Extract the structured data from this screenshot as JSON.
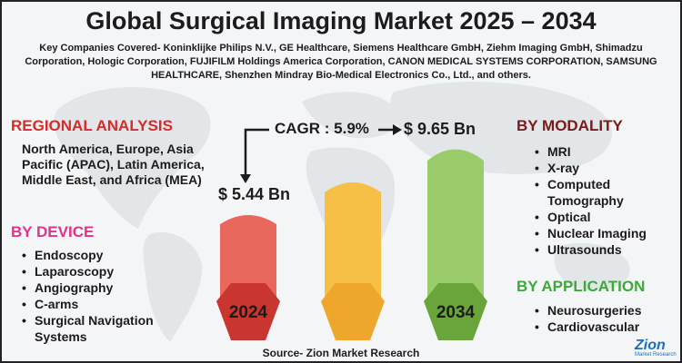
{
  "title": "Global Surgical Imaging Market 2025 – 2034",
  "companies": "Key Companies Covered- Koninklijke Philips N.V., GE Healthcare, Siemens Healthcare GmbH, Ziehm Imaging GmbH, Shimadzu Corporation, Hologic Corporation, FUJIFILM Holdings America Corporation, CANON MEDICAL SYSTEMS CORPORATION, SAMSUNG HEALTHCARE, Shenzhen Mindray Bio-Medical Electronics Co., Ltd., and others.",
  "regional": {
    "heading": "REGIONAL ANALYSIS",
    "text": "North America, Europe, Asia Pacific (APAC), Latin America, Middle East, and Africa (MEA)"
  },
  "device": {
    "heading": "BY DEVICE",
    "items": [
      "Endoscopy",
      "Laparoscopy",
      "Angiography",
      "C-arms",
      "Surgical Navigation Systems"
    ]
  },
  "modality": {
    "heading": "BY MODALITY",
    "items": [
      "MRI",
      "X-ray",
      "Computed Tomography",
      "Optical",
      "Nuclear Imaging",
      "Ultrasounds"
    ]
  },
  "application": {
    "heading": "BY APPLICATION",
    "items": [
      "Neurosurgeries",
      "Cardiovascular"
    ]
  },
  "growth": {
    "cagr": "CAGR : 5.9%",
    "value_2024": "$ 5.44 Bn",
    "value_2034": "$ 9.65 Bn",
    "year_start": "2024",
    "year_end": "2034"
  },
  "colors": {
    "bar_2024": "#e8685e",
    "hex_2024": "#c9362f",
    "bar_mid": "#f6bf45",
    "hex_mid": "#efa62c",
    "bar_2034": "#9bcc6b",
    "hex_2034": "#6aa53b"
  },
  "source": "Source- Zion Market Research",
  "logo": {
    "name": "Zion",
    "tagline": "Market Research"
  }
}
